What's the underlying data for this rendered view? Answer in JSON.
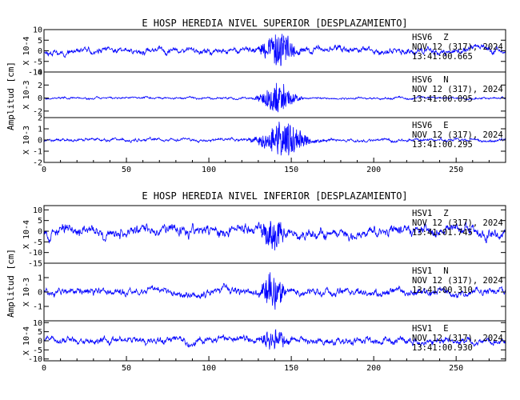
{
  "chart_data": [
    {
      "type": "line",
      "title": "E HOSP HEREDIA NIVEL SUPERIOR [DESPLAZAMIENTO]",
      "ylabel": "Amplitud [cm]",
      "xlim": [
        0,
        280
      ],
      "x_ticks": [
        0,
        50,
        100,
        150,
        200,
        250
      ],
      "line_color": "#0000ff",
      "traces": [
        {
          "station": "HSV6",
          "component": "Z",
          "date": "NOV 12 (317), 2024",
          "time": "13:41:00.665",
          "scale": "X 10-4",
          "ylim": [
            -10,
            10
          ],
          "y_ticks": [
            -10,
            -5,
            0,
            5,
            10
          ],
          "noise_amp": 3.2,
          "event_amp": 7.5,
          "event_center": 142,
          "event_width": 9,
          "seed": 11
        },
        {
          "station": "HSV6",
          "component": "N",
          "date": "NOV 12 (317), 2024",
          "time": "13:41:00.095",
          "scale": "X 10-3",
          "ylim": [
            -3,
            4
          ],
          "y_ticks": [
            -2,
            0,
            2,
            4
          ],
          "noise_amp": 0.35,
          "event_amp": 2.4,
          "event_center": 142,
          "event_width": 9,
          "seed": 23
        },
        {
          "station": "HSV6",
          "component": "E",
          "date": "NOV 12 (317), 2024",
          "time": "13:41:00.295",
          "scale": "X 10-3",
          "ylim": [
            -2,
            2
          ],
          "y_ticks": [
            -2,
            -1,
            0,
            1,
            2
          ],
          "noise_amp": 0.3,
          "event_amp": 1.6,
          "event_center": 145,
          "event_width": 12,
          "seed": 37
        }
      ]
    },
    {
      "type": "line",
      "title": "E HOSP HEREDIA NIVEL INFERIOR [DESPLAZAMIENTO]",
      "ylabel": "Amplitud [cm]",
      "xlim": [
        0,
        280
      ],
      "x_ticks": [
        0,
        50,
        100,
        150,
        200,
        250
      ],
      "line_color": "#0000ff",
      "traces": [
        {
          "station": "HSV1",
          "component": "Z",
          "date": "NOV 12 (317), 2024",
          "time": "13:41:01.745",
          "scale": "X 10-4",
          "ylim": [
            -15,
            12
          ],
          "y_ticks": [
            -15,
            -10,
            -5,
            0,
            5,
            10
          ],
          "noise_amp": 5.5,
          "event_amp": 6.5,
          "event_center": 139,
          "event_width": 6,
          "seed": 53
        },
        {
          "station": "HSV1",
          "component": "N",
          "date": "NOV 12 (317), 2024",
          "time": "13:41:00.310",
          "scale": "X 10-3",
          "ylim": [
            -2,
            2
          ],
          "y_ticks": [
            -1,
            0,
            1
          ],
          "noise_amp": 0.55,
          "event_amp": 1.2,
          "event_center": 139,
          "event_width": 6,
          "seed": 71
        },
        {
          "station": "HSV1",
          "component": "E",
          "date": "NOV 12 (317), 2024",
          "time": "13:41:00.930",
          "scale": "X 10-4",
          "ylim": [
            -11,
            11
          ],
          "y_ticks": [
            -10,
            -5,
            0,
            5,
            10
          ],
          "noise_amp": 4.2,
          "event_amp": 5.5,
          "event_center": 139,
          "event_width": 7,
          "seed": 89
        }
      ]
    }
  ]
}
